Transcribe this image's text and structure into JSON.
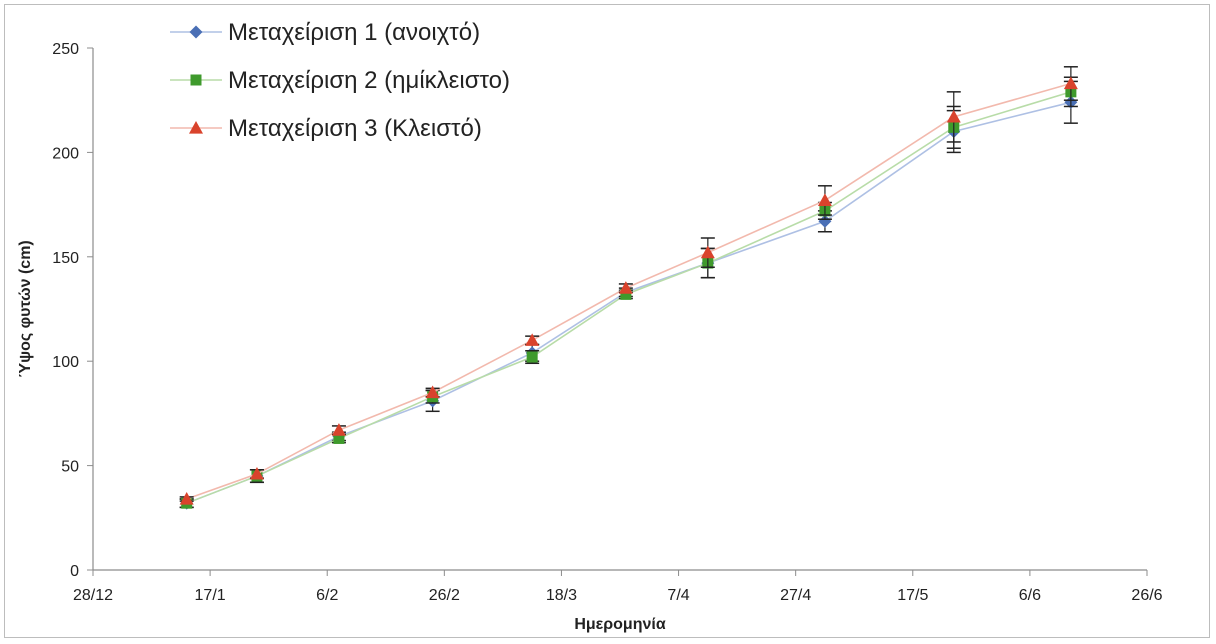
{
  "chart_data": {
    "type": "line",
    "title": "",
    "xlabel": "Ημερομηνία",
    "ylabel": "Ύψος φυτών (cm)",
    "x_ticks": [
      "28/12",
      "17/1",
      "6/2",
      "26/2",
      "18/3",
      "7/4",
      "27/4",
      "17/5",
      "6/6",
      "26/6"
    ],
    "x_tick_days": [
      0,
      20,
      40,
      60,
      80,
      100,
      120,
      140,
      160,
      180
    ],
    "xlim_days": [
      0,
      180
    ],
    "ylim": [
      0,
      250
    ],
    "y_ticks": [
      0,
      50,
      100,
      150,
      200,
      250
    ],
    "grid": false,
    "legend_position": "top-left",
    "x_days": [
      16,
      28,
      42,
      58,
      75,
      91,
      105,
      125,
      147,
      167
    ],
    "series": [
      {
        "name": "Μεταχείριση 1 (ανοιχτό)",
        "color": "#4a6fb5",
        "marker": "diamond",
        "values": [
          32,
          45,
          64,
          81,
          104,
          133,
          147,
          167,
          210,
          224
        ],
        "errors": [
          2,
          3,
          2,
          5,
          4,
          2,
          7,
          5,
          10,
          10
        ]
      },
      {
        "name": "Μεταχείριση 2 (ημίκλειστο)",
        "color": "#3f9a2c",
        "marker": "square",
        "values": [
          32,
          45,
          63,
          83,
          102,
          132,
          147,
          172,
          212,
          229
        ],
        "errors": [
          2,
          3,
          2,
          3,
          3,
          2,
          7,
          4,
          10,
          7
        ]
      },
      {
        "name": "Μεταχείριση 3 (Κλειστό)",
        "color": "#d9432c",
        "marker": "triangle",
        "values": [
          34,
          46,
          67,
          85,
          110,
          135,
          152,
          177,
          217,
          233
        ],
        "errors": [
          1,
          2,
          2,
          2,
          2,
          2,
          7,
          7,
          12,
          8
        ]
      }
    ]
  }
}
